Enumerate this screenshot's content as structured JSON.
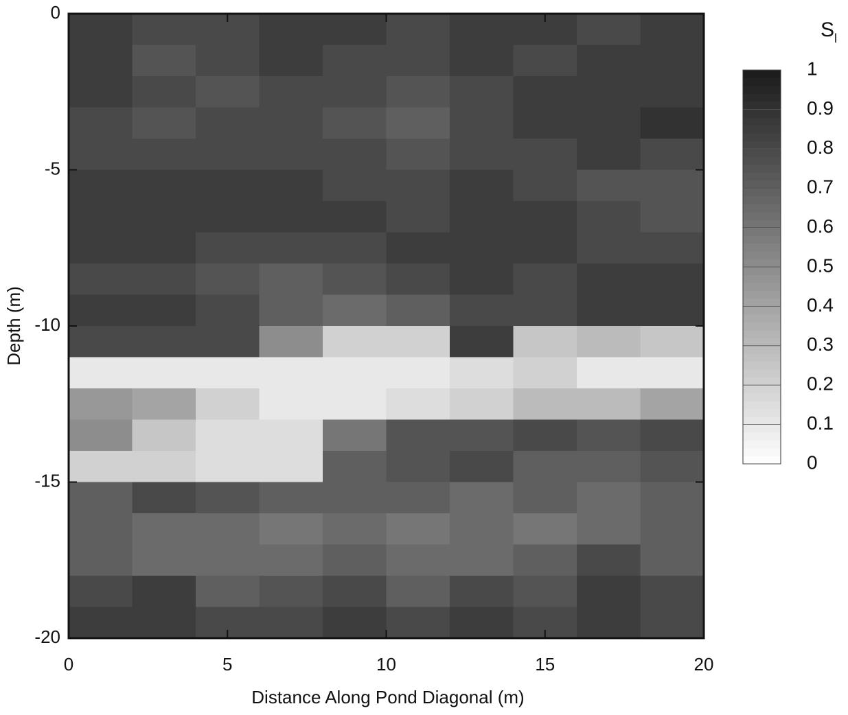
{
  "chart_data": {
    "type": "heatmap",
    "xlabel": "Distance Along Pond Diagonal (m)",
    "ylabel": "Depth (m)",
    "colorbar_title": "S",
    "colorbar_subscript": "l",
    "xbins": [
      0,
      2,
      4,
      6,
      8,
      10,
      12,
      14,
      16,
      18,
      20
    ],
    "ybins": [
      0,
      -1,
      -2,
      -3,
      -4,
      -5,
      -6,
      -7,
      -8,
      -9,
      -10,
      -11,
      -12,
      -13,
      -14,
      -15,
      -16,
      -17,
      -18,
      -19,
      -20
    ],
    "values": [
      [
        0.85,
        0.8,
        0.8,
        0.85,
        0.85,
        0.8,
        0.85,
        0.85,
        0.8,
        0.85
      ],
      [
        0.85,
        0.75,
        0.8,
        0.85,
        0.8,
        0.8,
        0.85,
        0.8,
        0.85,
        0.85
      ],
      [
        0.85,
        0.8,
        0.75,
        0.8,
        0.8,
        0.75,
        0.8,
        0.85,
        0.85,
        0.85
      ],
      [
        0.8,
        0.75,
        0.8,
        0.8,
        0.75,
        0.7,
        0.8,
        0.85,
        0.85,
        0.9
      ],
      [
        0.8,
        0.8,
        0.8,
        0.8,
        0.8,
        0.75,
        0.8,
        0.8,
        0.85,
        0.8
      ],
      [
        0.85,
        0.85,
        0.85,
        0.85,
        0.8,
        0.8,
        0.85,
        0.8,
        0.75,
        0.75
      ],
      [
        0.85,
        0.85,
        0.85,
        0.85,
        0.85,
        0.8,
        0.85,
        0.85,
        0.8,
        0.75
      ],
      [
        0.85,
        0.85,
        0.8,
        0.8,
        0.8,
        0.85,
        0.85,
        0.85,
        0.8,
        0.8
      ],
      [
        0.8,
        0.8,
        0.75,
        0.7,
        0.75,
        0.8,
        0.85,
        0.8,
        0.85,
        0.85
      ],
      [
        0.85,
        0.85,
        0.8,
        0.7,
        0.65,
        0.7,
        0.8,
        0.8,
        0.85,
        0.85
      ],
      [
        0.8,
        0.8,
        0.8,
        0.5,
        0.2,
        0.2,
        0.85,
        0.25,
        0.3,
        0.25
      ],
      [
        0.1,
        0.1,
        0.1,
        0.1,
        0.1,
        0.1,
        0.15,
        0.2,
        0.1,
        0.1
      ],
      [
        0.45,
        0.4,
        0.2,
        0.1,
        0.1,
        0.15,
        0.2,
        0.3,
        0.3,
        0.4
      ],
      [
        0.5,
        0.25,
        0.15,
        0.15,
        0.6,
        0.75,
        0.75,
        0.8,
        0.75,
        0.8
      ],
      [
        0.2,
        0.2,
        0.15,
        0.15,
        0.7,
        0.75,
        0.8,
        0.7,
        0.7,
        0.75
      ],
      [
        0.7,
        0.8,
        0.75,
        0.7,
        0.7,
        0.7,
        0.65,
        0.7,
        0.65,
        0.7
      ],
      [
        0.7,
        0.65,
        0.65,
        0.6,
        0.65,
        0.6,
        0.65,
        0.6,
        0.65,
        0.7
      ],
      [
        0.7,
        0.65,
        0.65,
        0.65,
        0.7,
        0.65,
        0.65,
        0.7,
        0.8,
        0.7
      ],
      [
        0.8,
        0.85,
        0.7,
        0.75,
        0.8,
        0.7,
        0.8,
        0.75,
        0.85,
        0.8
      ],
      [
        0.85,
        0.85,
        0.8,
        0.8,
        0.85,
        0.8,
        0.85,
        0.8,
        0.85,
        0.8
      ]
    ],
    "xlim": [
      0,
      20
    ],
    "xticks": [
      0,
      5,
      10,
      15,
      20
    ],
    "ylim": [
      -20,
      0
    ],
    "yticks": [
      0,
      -5,
      -10,
      -15,
      -20
    ],
    "clim": [
      0,
      1
    ],
    "cticks": [
      1,
      0.9,
      0.8,
      0.7,
      0.6,
      0.5,
      0.4,
      0.3,
      0.2,
      0.1,
      0
    ]
  }
}
